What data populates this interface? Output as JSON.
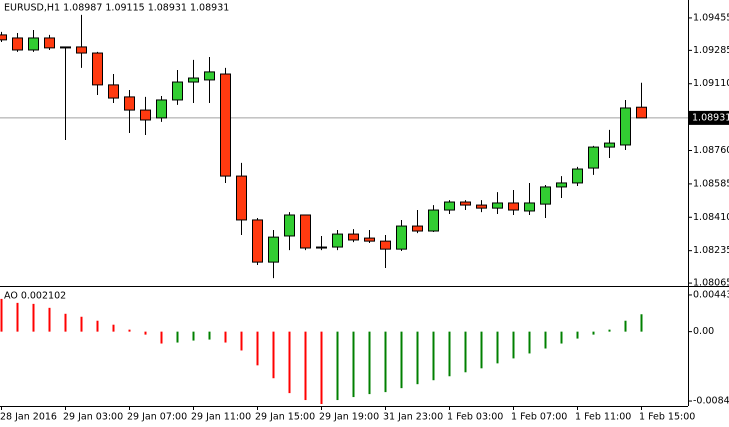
{
  "chart_data": [
    {
      "type": "candlestick",
      "title": "EURUSD,H1 1.08987 1.09115 1.08931 1.08931",
      "open": [
        1.09366,
        1.0935,
        1.09287,
        1.0935,
        1.09303,
        1.09303,
        1.09271,
        1.09104,
        1.09041,
        1.08972,
        1.08931,
        1.09025,
        1.09119,
        1.0913,
        1.09161,
        1.08626,
        1.08396,
        1.08175,
        1.08312,
        1.08422,
        1.08254,
        1.08254,
        1.08322,
        1.08301,
        1.08285,
        1.08243,
        1.08364,
        1.08338,
        1.08448,
        1.0849,
        1.08474,
        1.08458,
        1.08485,
        1.08443,
        1.08479,
        1.08569,
        1.0859,
        1.08668,
        1.08778,
        1.08789,
        1.08987
      ],
      "high": [
        1.09382,
        1.09376,
        1.09392,
        1.09366,
        1.09303,
        1.09471,
        1.09277,
        1.09161,
        1.09077,
        1.09041,
        1.09046,
        1.09182,
        1.09235,
        1.0925,
        1.09193,
        1.08695,
        1.08406,
        1.08343,
        1.08437,
        1.08422,
        1.08312,
        1.08343,
        1.08348,
        1.08343,
        1.08317,
        1.08396,
        1.08448,
        1.08474,
        1.085,
        1.085,
        1.085,
        1.08542,
        1.08553,
        1.0859,
        1.08579,
        1.08626,
        1.08674,
        1.08784,
        1.08868,
        1.09025,
        1.09115
      ],
      "low": [
        1.09329,
        1.09277,
        1.09277,
        1.09287,
        1.08815,
        1.09193,
        1.09051,
        1.09009,
        1.08852,
        1.08841,
        1.0891,
        1.08999,
        1.09009,
        1.09009,
        1.0859,
        1.08317,
        1.0816,
        1.08091,
        1.08238,
        1.08238,
        1.08238,
        1.08238,
        1.0828,
        1.08275,
        1.08144,
        1.08233,
        1.08327,
        1.08333,
        1.08427,
        1.08448,
        1.08437,
        1.08427,
        1.08422,
        1.08422,
        1.08406,
        1.08511,
        1.08574,
        1.08632,
        1.08721,
        1.08763,
        1.08931
      ],
      "close": [
        1.0934,
        1.09287,
        1.0935,
        1.09298,
        1.09298,
        1.09271,
        1.09104,
        1.09035,
        1.08972,
        1.0892,
        1.09025,
        1.09119,
        1.0914,
        1.09172,
        1.08626,
        1.08396,
        1.08175,
        1.08306,
        1.08422,
        1.08249,
        1.08249,
        1.08322,
        1.08291,
        1.08285,
        1.08243,
        1.08364,
        1.08338,
        1.08448,
        1.0849,
        1.08474,
        1.08458,
        1.08485,
        1.08448,
        1.08485,
        1.08569,
        1.0859,
        1.08663,
        1.08778,
        1.08799,
        1.08983,
        1.08931
      ],
      "up_color": "#32cd32",
      "down_color": "#ff3a10",
      "last_price": 1.08931,
      "ylim": [
        1.08055,
        1.09549
      ],
      "yticks": [
        1.09455,
        1.09285,
        {
          "value": 1.0911,
          "label": "1.09110"
        },
        {
          "value": 1.0876,
          "label": "1.08760"
        },
        1.08585,
        {
          "value": 1.0841,
          "label": "1.08410"
        },
        1.08235,
        1.08065
      ]
    },
    {
      "type": "histogram",
      "title": "AO 0.002102",
      "categories": [
        "28 Jan 2016",
        null,
        null,
        null,
        "29 Jan 03:00",
        null,
        null,
        null,
        "29 Jan 07:00",
        null,
        null,
        null,
        "29 Jan 11:00",
        null,
        null,
        null,
        "29 Jan 15:00",
        null,
        null,
        null,
        "29 Jan 19:00",
        null,
        null,
        null,
        "31 Jan 23:00",
        null,
        null,
        null,
        "1 Feb 03:00",
        null,
        null,
        null,
        "1 Feb 07:00",
        null,
        null,
        null,
        "1 Feb 11:00",
        null,
        null,
        null,
        "1 Feb 15:00"
      ],
      "values": [
        0.00396,
        0.00348,
        0.00336,
        0.00288,
        0.00216,
        0.0018,
        0.00132,
        0.00084,
        0.00024,
        -0.00036,
        -0.00144,
        -0.00132,
        -0.00108,
        -0.00096,
        -0.00132,
        -0.00228,
        -0.00408,
        -0.00564,
        -0.00744,
        -0.00828,
        -0.00876,
        -0.00828,
        -0.00792,
        -0.00756,
        -0.00732,
        -0.00684,
        -0.00636,
        -0.00588,
        -0.0054,
        -0.00492,
        -0.00444,
        -0.00384,
        -0.00324,
        -0.00264,
        -0.00204,
        -0.00144,
        -0.00084,
        -0.00036,
        0.00024,
        0.00132,
        0.002102
      ],
      "up_color": "#008000",
      "down_color": "#ff0000",
      "ylim": [
        -0.009,
        0.00528
      ],
      "yticks": [
        0.004438,
        {
          "value": 0,
          "label": "0.00"
        },
        {
          "value": -0.0084,
          "label": "-0.00840"
        }
      ]
    }
  ]
}
